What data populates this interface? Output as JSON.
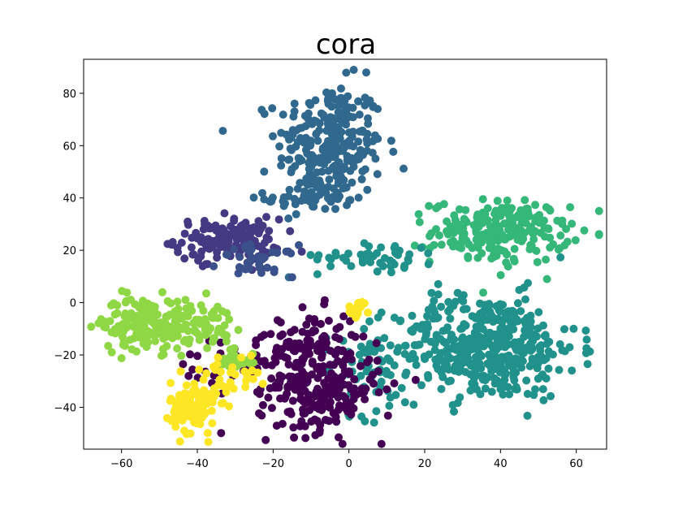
{
  "chart_data": {
    "type": "scatter",
    "title": "cora",
    "xlabel": "",
    "ylabel": "",
    "xlim": [
      -70,
      68
    ],
    "ylim": [
      -56,
      93
    ],
    "x_ticks": [
      -60,
      -40,
      -20,
      0,
      20,
      40,
      60
    ],
    "y_ticks": [
      -40,
      -20,
      0,
      20,
      40,
      60,
      80
    ],
    "grid": false,
    "legend": "none",
    "point_radius": 5,
    "clusters": [
      {
        "color": "#31688e",
        "center": [
          -5,
          60
        ],
        "spread": [
          7,
          12
        ],
        "count": 260
      },
      {
        "color": "#31688e",
        "center": [
          -10,
          40
        ],
        "spread": [
          6,
          4
        ],
        "count": 40
      },
      {
        "color": "#443983",
        "center": [
          -32,
          24
        ],
        "spread": [
          7,
          4
        ],
        "count": 140
      },
      {
        "color": "#3b518b",
        "center": [
          -24,
          16
        ],
        "spread": [
          5,
          3
        ],
        "count": 40
      },
      {
        "color": "#35b779",
        "center": [
          40,
          27
        ],
        "spread": [
          9,
          6
        ],
        "count": 220
      },
      {
        "color": "#21918c",
        "center": [
          36,
          -17
        ],
        "spread": [
          12,
          10
        ],
        "count": 430
      },
      {
        "color": "#21918c",
        "center": [
          8,
          18
        ],
        "spread": [
          8,
          3
        ],
        "count": 50
      },
      {
        "color": "#21918c",
        "center": [
          5,
          -25
        ],
        "spread": [
          6,
          9
        ],
        "count": 60
      },
      {
        "color": "#440154",
        "center": [
          -8,
          -33
        ],
        "spread": [
          8,
          8
        ],
        "count": 230
      },
      {
        "color": "#440154",
        "center": [
          -10,
          -15
        ],
        "spread": [
          6,
          6
        ],
        "count": 80
      },
      {
        "color": "#440154",
        "center": [
          -30,
          -25
        ],
        "spread": [
          8,
          7
        ],
        "count": 40
      },
      {
        "color": "#8fd744",
        "center": [
          -53,
          -8
        ],
        "spread": [
          6,
          5
        ],
        "count": 180
      },
      {
        "color": "#8fd744",
        "center": [
          -38,
          -8
        ],
        "spread": [
          4,
          4
        ],
        "count": 50
      },
      {
        "color": "#8fd744",
        "center": [
          -30,
          -22
        ],
        "spread": [
          3,
          3
        ],
        "count": 20
      },
      {
        "color": "#fde725",
        "center": [
          -41,
          -40
        ],
        "spread": [
          3,
          5
        ],
        "count": 130
      },
      {
        "color": "#fde725",
        "center": [
          -32,
          -28
        ],
        "spread": [
          4,
          4
        ],
        "count": 30
      },
      {
        "color": "#fde725",
        "center": [
          3,
          -2
        ],
        "spread": [
          1.5,
          1.5
        ],
        "count": 20
      }
    ]
  }
}
